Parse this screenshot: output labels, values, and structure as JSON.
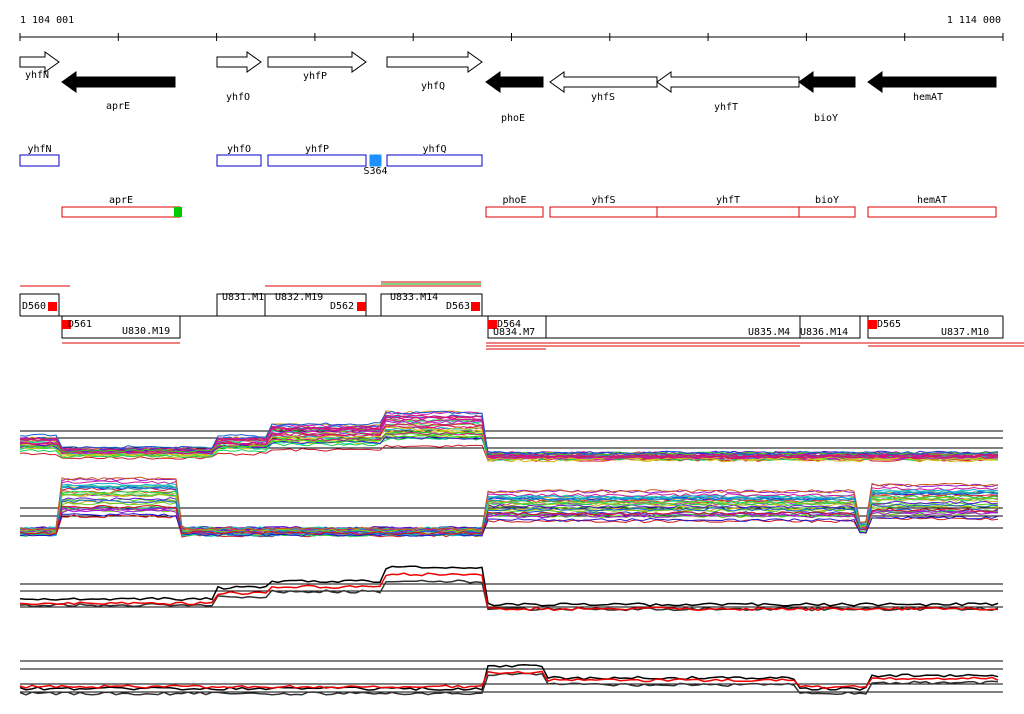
{
  "ruler": {
    "start": "1 104 001",
    "end": "1 114 000"
  },
  "genes": [
    "yhfN",
    "aprE",
    "yhfO",
    "yhfP",
    "yhfQ",
    "phoE",
    "yhfS",
    "yhfT",
    "bioY",
    "hemAT"
  ],
  "features_blue": [
    "yhfN",
    "yhfO",
    "yhfP",
    "S364",
    "yhfQ"
  ],
  "features_red": [
    "aprE",
    "phoE",
    "yhfS",
    "yhfT",
    "bioY",
    "hemAT"
  ],
  "segments": [
    "D560",
    "D561",
    "U830.M19",
    "U831.M1",
    "U832.M19",
    "D562",
    "U833.M14",
    "D563",
    "D564",
    "U834.M7",
    "U835.M4",
    "U836.M14",
    "D565",
    "U837.M10"
  ]
}
